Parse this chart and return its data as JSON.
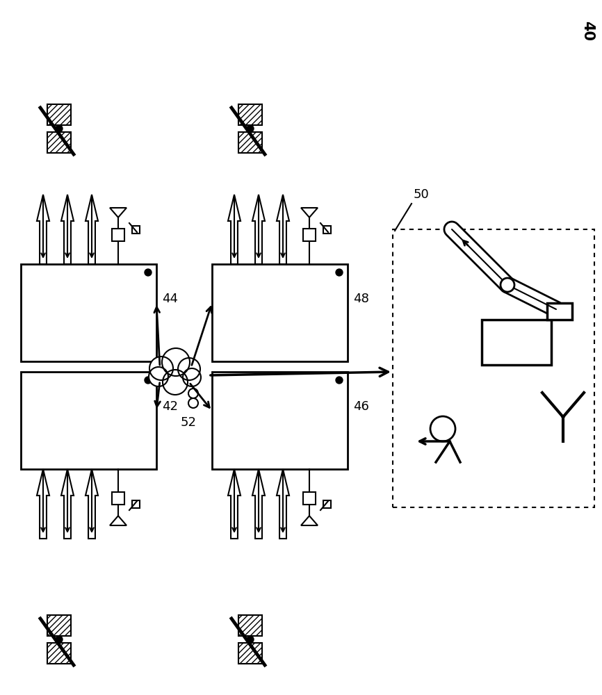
{
  "bg_color": "#ffffff",
  "label_40": "40",
  "label_42": "42",
  "label_44": "44",
  "label_46": "46",
  "label_48": "48",
  "label_50": "50",
  "label_52": "52"
}
